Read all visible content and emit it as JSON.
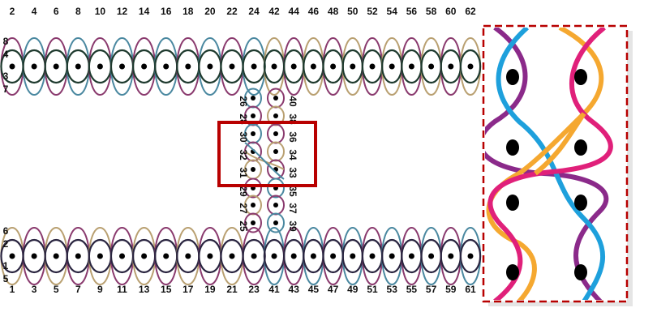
{
  "top_row": {
    "labels": [
      "2",
      "4",
      "6",
      "8",
      "10",
      "12",
      "14",
      "16",
      "18",
      "20",
      "22",
      "24",
      "42",
      "44",
      "46",
      "48",
      "50",
      "52",
      "54",
      "56",
      "58",
      "60",
      "62"
    ],
    "side_labels": [
      "8",
      "4",
      "3",
      "7"
    ]
  },
  "bottom_row": {
    "labels": [
      "1",
      "3",
      "5",
      "7",
      "9",
      "11",
      "13",
      "15",
      "17",
      "19",
      "21",
      "23",
      "41",
      "43",
      "45",
      "47",
      "49",
      "51",
      "53",
      "55",
      "57",
      "59",
      "61"
    ],
    "side_labels": [
      "6",
      "2",
      "1",
      "5"
    ]
  },
  "column": {
    "left_labels": [
      "26",
      "28",
      "30",
      "32",
      "31",
      "29",
      "27",
      "25"
    ],
    "right_labels": [
      "40",
      "38",
      "36",
      "34",
      "33",
      "35",
      "37",
      "39"
    ]
  },
  "colors": {
    "purple": "#8a3a6e",
    "blue": "#4a88a0",
    "tan": "#b9a071",
    "dark_green": "#1e3a2e",
    "dark_navy": "#2a2540",
    "highlight_box": "#b80000",
    "inset_purple": "#8b2a8a",
    "inset_blue": "#1ea0dc",
    "inset_pink": "#e0207a",
    "inset_orange": "#f5a830"
  }
}
